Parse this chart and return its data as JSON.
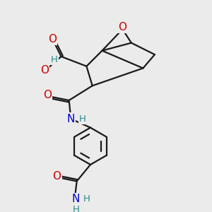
{
  "bg_color": "#ebebeb",
  "bond_color": "#1a1a1a",
  "oxygen_color": "#cc0000",
  "nitrogen_color": "#0000cc",
  "hydrogen_color": "#2e8b8b",
  "line_width": 1.6,
  "font_size_atoms": 11,
  "font_size_H": 9.5,
  "xlim": [
    0,
    10
  ],
  "ylim": [
    0,
    10
  ]
}
